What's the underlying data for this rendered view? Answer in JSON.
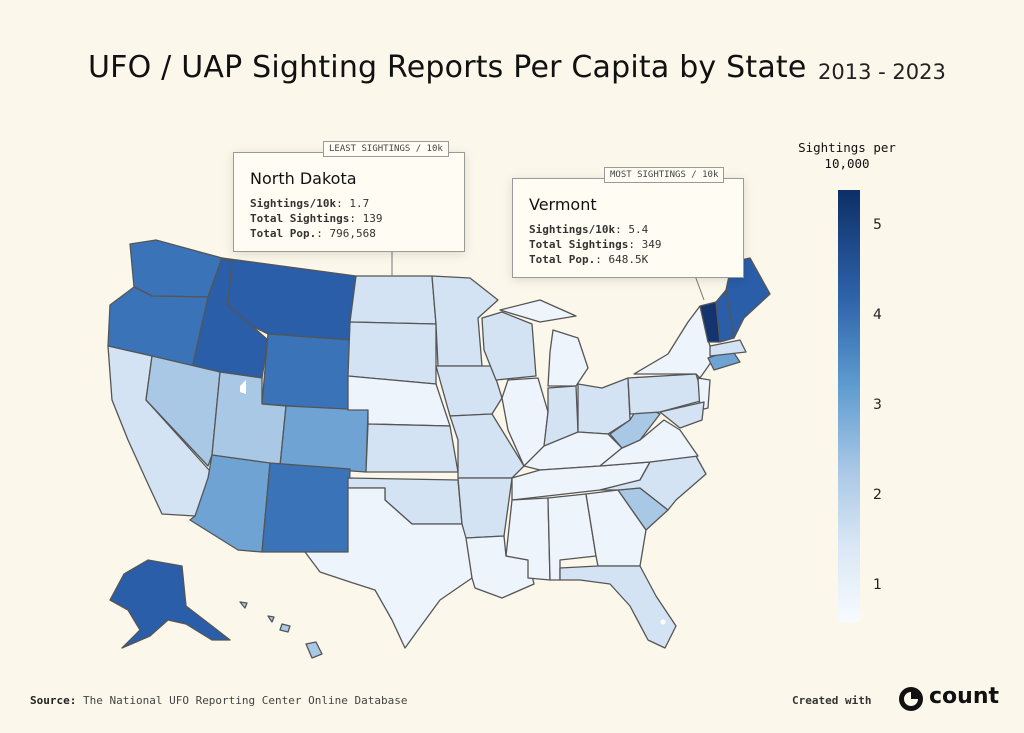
{
  "header": {
    "title": "UFO / UAP Sighting Reports Per Capita by State",
    "subtitle": "2013 - 2023"
  },
  "callouts": {
    "least": {
      "tag": "LEAST SIGHTINGS / 10k",
      "state": "North Dakota",
      "rows": [
        {
          "key": "Sightings/10k",
          "value": ": 1.7"
        },
        {
          "key": "Total Sightings",
          "value": ": 139"
        },
        {
          "key": "Total Pop.",
          "value": ": 796,568"
        }
      ]
    },
    "most": {
      "tag": "MOST SIGHTINGS / 10k",
      "state": "Vermont",
      "rows": [
        {
          "key": "Sightings/10k",
          "value": ": 5.4"
        },
        {
          "key": "Total Sightings",
          "value": ": 349"
        },
        {
          "key": "Total Pop.",
          "value": ": 648.5K"
        }
      ]
    }
  },
  "legend": {
    "title_line1": "Sightings per",
    "title_line2": "10,000",
    "ticks": [
      "5",
      "4",
      "3",
      "2",
      "1"
    ]
  },
  "footer": {
    "source_label": "Source:",
    "source_text": " The National UFO Reporting Center Online Database",
    "created_with": "Created with",
    "brand": "count"
  },
  "colors": {
    "background": "#fbf7ea",
    "scale_low": "#f7fbff",
    "scale_high": "#0d2f66",
    "state_border": "#555555"
  },
  "states": [
    {
      "name": "Washington",
      "tier": 4
    },
    {
      "name": "Oregon",
      "tier": 4
    },
    {
      "name": "California",
      "tier": 1
    },
    {
      "name": "Idaho",
      "tier": 5
    },
    {
      "name": "Nevada",
      "tier": 2
    },
    {
      "name": "Montana",
      "tier": 5
    },
    {
      "name": "Wyoming",
      "tier": 4
    },
    {
      "name": "Utah",
      "tier": 2
    },
    {
      "name": "Arizona",
      "tier": 3
    },
    {
      "name": "Colorado",
      "tier": 3
    },
    {
      "name": "New Mexico",
      "tier": 4
    },
    {
      "name": "North Dakota",
      "tier": 1
    },
    {
      "name": "South Dakota",
      "tier": 1
    },
    {
      "name": "Nebraska",
      "tier": 0
    },
    {
      "name": "Kansas",
      "tier": 1
    },
    {
      "name": "Oklahoma",
      "tier": 1
    },
    {
      "name": "Texas",
      "tier": 0
    },
    {
      "name": "Minnesota",
      "tier": 1
    },
    {
      "name": "Iowa",
      "tier": 1
    },
    {
      "name": "Missouri",
      "tier": 1
    },
    {
      "name": "Arkansas",
      "tier": 1
    },
    {
      "name": "Louisiana",
      "tier": 0
    },
    {
      "name": "Wisconsin",
      "tier": 1
    },
    {
      "name": "Illinois",
      "tier": 0
    },
    {
      "name": "Michigan",
      "tier": 0
    },
    {
      "name": "Indiana",
      "tier": 1
    },
    {
      "name": "Ohio",
      "tier": 1
    },
    {
      "name": "Kentucky",
      "tier": 0
    },
    {
      "name": "Tennessee",
      "tier": 0
    },
    {
      "name": "Mississippi",
      "tier": 0
    },
    {
      "name": "Alabama",
      "tier": 0
    },
    {
      "name": "Georgia",
      "tier": 0
    },
    {
      "name": "Florida",
      "tier": 1
    },
    {
      "name": "South Carolina",
      "tier": 2
    },
    {
      "name": "North Carolina",
      "tier": 1
    },
    {
      "name": "Virginia",
      "tier": 0
    },
    {
      "name": "West Virginia",
      "tier": 2
    },
    {
      "name": "Pennsylvania",
      "tier": 1
    },
    {
      "name": "New York",
      "tier": 0
    },
    {
      "name": "Vermont",
      "tier": 6
    },
    {
      "name": "New Hampshire",
      "tier": 5
    },
    {
      "name": "Maine",
      "tier": 5
    },
    {
      "name": "Connecticut",
      "tier": 3
    },
    {
      "name": "New Jersey",
      "tier": 0
    },
    {
      "name": "Alaska",
      "tier": 5
    },
    {
      "name": "Hawaii",
      "tier": 2
    }
  ]
}
